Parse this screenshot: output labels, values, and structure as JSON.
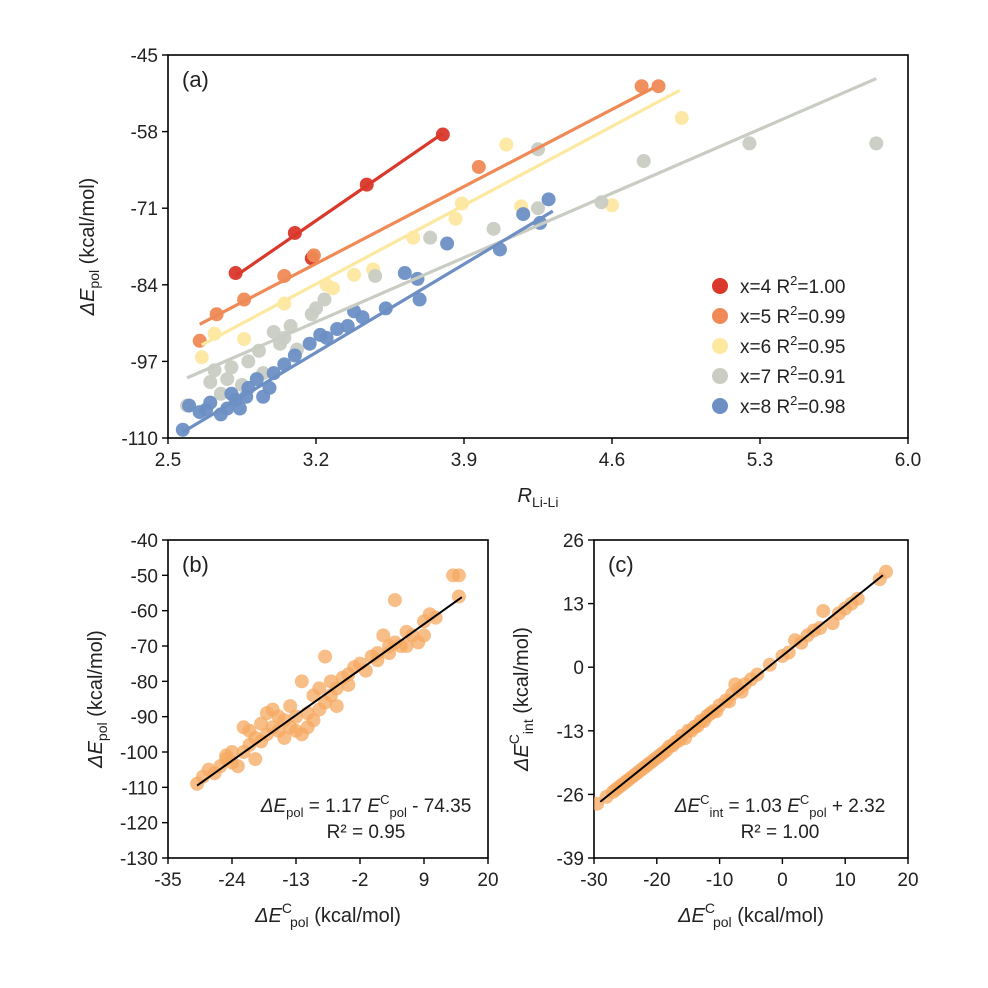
{
  "chart_data": [
    {
      "panel": "(a)",
      "type": "scatter",
      "xlabel": "R",
      "xlabel_sub": "Li-Li",
      "ylabel": "ΔE",
      "ylabel_sub": "pol",
      "ylabel_unit": " (kcal/mol)",
      "xlim": [
        2.5,
        6.0
      ],
      "ylim": [
        -110,
        -45
      ],
      "xticks": [
        2.5,
        3.2,
        3.9,
        4.6,
        5.3,
        6.0
      ],
      "xtick_labels": [
        "2.5",
        "3.2",
        "3.9",
        "4.6",
        "5.3",
        "6.0"
      ],
      "yticks": [
        -110,
        -97,
        -84,
        -71,
        -58,
        -45
      ],
      "ytick_labels": [
        "-110",
        "-97",
        "-84",
        "-71",
        "-58",
        "-45"
      ],
      "legend_position": "bottom-right",
      "series": [
        {
          "name": "x=4 R",
          "r2": "1.00",
          "color": "#d9382a",
          "points": [
            [
              2.82,
              -82.0
            ],
            [
              3.1,
              -75.2
            ],
            [
              3.44,
              -67.0
            ],
            [
              3.8,
              -58.5
            ],
            [
              3.18,
              -79.5
            ]
          ],
          "fit": [
            [
              2.82,
              -82.5
            ],
            [
              3.8,
              -58.3
            ]
          ]
        },
        {
          "name": "x=5 R",
          "r2": "0.99",
          "color": "#ef8a56",
          "points": [
            [
              2.65,
              -93.5
            ],
            [
              2.73,
              -89.0
            ],
            [
              2.86,
              -86.5
            ],
            [
              3.05,
              -82.5
            ],
            [
              3.19,
              -79.0
            ],
            [
              3.97,
              -64.0
            ],
            [
              4.74,
              -50.3
            ],
            [
              4.82,
              -50.3
            ]
          ],
          "fit": [
            [
              2.65,
              -90.7
            ],
            [
              4.8,
              -50.5
            ]
          ]
        },
        {
          "name": "x=6 R",
          "r2": "0.95",
          "color": "#fde8a0",
          "points": [
            [
              2.66,
              -96.3
            ],
            [
              2.72,
              -92.3
            ],
            [
              2.86,
              -93.2
            ],
            [
              3.05,
              -87.2
            ],
            [
              3.25,
              -84.0
            ],
            [
              3.28,
              -84.6
            ],
            [
              3.38,
              -82.3
            ],
            [
              3.47,
              -81.4
            ],
            [
              3.66,
              -76.0
            ],
            [
              3.86,
              -72.8
            ],
            [
              3.89,
              -70.2
            ],
            [
              4.1,
              -60.2
            ],
            [
              4.17,
              -70.7
            ],
            [
              4.6,
              -70.5
            ],
            [
              4.93,
              -55.7
            ]
          ],
          "fit": [
            [
              2.66,
              -94.2
            ],
            [
              4.92,
              -51.0
            ]
          ]
        },
        {
          "name": "x=7 R",
          "r2": "0.91",
          "color": "#c8ccc3",
          "points": [
            [
              2.59,
              -104.5
            ],
            [
              2.7,
              -100.5
            ],
            [
              2.72,
              -98.5
            ],
            [
              2.75,
              -102.5
            ],
            [
              2.8,
              -98.0
            ],
            [
              2.88,
              -97.0
            ],
            [
              2.93,
              -95.2
            ],
            [
              3.0,
              -92.0
            ],
            [
              3.03,
              -94.0
            ],
            [
              3.05,
              -93.0
            ],
            [
              3.08,
              -91.0
            ],
            [
              3.11,
              -95.0
            ],
            [
              3.18,
              -89.0
            ],
            [
              3.2,
              -88.0
            ],
            [
              3.24,
              -86.5
            ],
            [
              3.48,
              -82.5
            ],
            [
              3.74,
              -76.0
            ],
            [
              4.04,
              -74.5
            ],
            [
              4.25,
              -71.0
            ],
            [
              4.25,
              -61.0
            ],
            [
              4.55,
              -70.0
            ],
            [
              4.75,
              -63.0
            ],
            [
              5.25,
              -60.0
            ],
            [
              5.85,
              -60.0
            ],
            [
              2.85,
              -101.0
            ],
            [
              2.95,
              -99.0
            ],
            [
              2.78,
              -100.0
            ]
          ],
          "fit": [
            [
              2.59,
              -99.8
            ],
            [
              5.85,
              -49.0
            ]
          ]
        },
        {
          "name": "x=8 R",
          "r2": "0.98",
          "color": "#6d8fc4",
          "points": [
            [
              2.57,
              -108.6
            ],
            [
              2.6,
              -104.5
            ],
            [
              2.65,
              -105.6
            ],
            [
              2.68,
              -105.2
            ],
            [
              2.7,
              -104.0
            ],
            [
              2.75,
              -106.0
            ],
            [
              2.78,
              -105.0
            ],
            [
              2.8,
              -102.5
            ],
            [
              2.82,
              -103.5
            ],
            [
              2.84,
              -105.0
            ],
            [
              2.87,
              -103.0
            ],
            [
              2.88,
              -101.5
            ],
            [
              2.92,
              -100.0
            ],
            [
              2.95,
              -103.0
            ],
            [
              3.0,
              -99.0
            ],
            [
              3.05,
              -97.5
            ],
            [
              3.1,
              -96.0
            ],
            [
              3.17,
              -94.0
            ],
            [
              3.22,
              -92.5
            ],
            [
              3.25,
              -93.0
            ],
            [
              3.3,
              -91.5
            ],
            [
              3.35,
              -91.0
            ],
            [
              3.38,
              -88.5
            ],
            [
              3.42,
              -89.5
            ],
            [
              3.53,
              -88.0
            ],
            [
              3.62,
              -82.0
            ],
            [
              3.68,
              -83.0
            ],
            [
              3.69,
              -86.5
            ],
            [
              3.82,
              -77.0
            ],
            [
              4.07,
              -78.0
            ],
            [
              4.18,
              -72.0
            ],
            [
              4.26,
              -73.5
            ],
            [
              4.3,
              -69.5
            ],
            [
              2.98,
              -101.5
            ]
          ],
          "fit": [
            [
              2.57,
              -109.0
            ],
            [
              4.32,
              -71.5
            ]
          ]
        }
      ]
    },
    {
      "panel": "(b)",
      "type": "scatter",
      "xlabel": "ΔE",
      "xlabel_sup": "C",
      "xlabel_sub": "pol",
      "xlabel_unit": " (kcal/mol)",
      "ylabel": "ΔE",
      "ylabel_sub": "pol",
      "ylabel_unit": " (kcal/mol)",
      "xlim": [
        -35,
        20
      ],
      "ylim": [
        -130,
        -40
      ],
      "xticks": [
        -35,
        -24,
        -13,
        -2,
        9,
        20
      ],
      "xtick_labels": [
        "-35",
        "-24",
        "-13",
        "-2",
        "9",
        "20"
      ],
      "yticks": [
        -130,
        -120,
        -110,
        -100,
        -90,
        -80,
        -70,
        -60,
        -50,
        -40
      ],
      "ytick_labels": [
        "-130",
        "-120",
        "-110",
        "-100",
        "-90",
        "-80",
        "-70",
        "-60",
        "-50",
        "-40"
      ],
      "color": "#f5a860",
      "equation": "1.17 ΔE",
      "equation_tail": " - 74.35",
      "r2": "R² = 0.95",
      "fit": [
        [
          -30,
          -109.5
        ],
        [
          15.5,
          -56.2
        ]
      ],
      "points": [
        [
          -30,
          -109
        ],
        [
          -29,
          -107
        ],
        [
          -28,
          -105
        ],
        [
          -27,
          -106
        ],
        [
          -26,
          -104
        ],
        [
          -25,
          -102
        ],
        [
          -25,
          -101
        ],
        [
          -24,
          -103
        ],
        [
          -24,
          -100
        ],
        [
          -23,
          -104
        ],
        [
          -22,
          -100
        ],
        [
          -22,
          -93
        ],
        [
          -21,
          -98
        ],
        [
          -21,
          -94
        ],
        [
          -20,
          -102
        ],
        [
          -20,
          -96
        ],
        [
          -19,
          -97
        ],
        [
          -19,
          -92
        ],
        [
          -18,
          -95
        ],
        [
          -18,
          -89
        ],
        [
          -17,
          -88
        ],
        [
          -17,
          -93
        ],
        [
          -16,
          -94
        ],
        [
          -16,
          -90
        ],
        [
          -15,
          -91
        ],
        [
          -15,
          -96
        ],
        [
          -14,
          -93
        ],
        [
          -14,
          -87
        ],
        [
          -13,
          -94
        ],
        [
          -13,
          -90
        ],
        [
          -12,
          -95
        ],
        [
          -12,
          -80
        ],
        [
          -11,
          -89
        ],
        [
          -11,
          -93
        ],
        [
          -10,
          -91
        ],
        [
          -10,
          -84
        ],
        [
          -9,
          -82
        ],
        [
          -9,
          -88
        ],
        [
          -8,
          -86
        ],
        [
          -8,
          -73
        ],
        [
          -7,
          -80
        ],
        [
          -7,
          -84
        ],
        [
          -6,
          -87
        ],
        [
          -6,
          -82
        ],
        [
          -5,
          -79
        ],
        [
          -4,
          -78
        ],
        [
          -4,
          -81
        ],
        [
          -3,
          -76
        ],
        [
          -2,
          -75
        ],
        [
          -1,
          -77
        ],
        [
          0,
          -73
        ],
        [
          1,
          -72
        ],
        [
          1,
          -74
        ],
        [
          2,
          -67
        ],
        [
          3,
          -70
        ],
        [
          3,
          -72
        ],
        [
          4,
          -69
        ],
        [
          4,
          -57
        ],
        [
          5,
          -70
        ],
        [
          6,
          -66
        ],
        [
          6,
          -70
        ],
        [
          7,
          -67
        ],
        [
          8,
          -69
        ],
        [
          9,
          -63
        ],
        [
          9,
          -67
        ],
        [
          10,
          -61
        ],
        [
          11,
          -62
        ],
        [
          14,
          -50
        ],
        [
          15,
          -50
        ],
        [
          15,
          -56
        ]
      ]
    },
    {
      "panel": "(c)",
      "type": "scatter",
      "xlabel": "ΔE",
      "xlabel_sup": "C",
      "xlabel_sub": "pol",
      "xlabel_unit": " (kcal/mol)",
      "ylabel": "ΔE",
      "ylabel_sup": "C",
      "ylabel_sub": "int",
      "ylabel_unit": " (kcal/mol)",
      "xlim": [
        -30,
        20
      ],
      "ylim": [
        -39,
        26
      ],
      "xticks": [
        -30,
        -20,
        -10,
        0,
        10,
        20
      ],
      "xtick_labels": [
        "-30",
        "-20",
        "-10",
        "0",
        "10",
        "20"
      ],
      "yticks": [
        -39,
        -26,
        -13,
        0,
        13,
        26
      ],
      "ytick_labels": [
        "-39",
        "-26",
        "-13",
        "0",
        "13",
        "26"
      ],
      "color": "#f5a860",
      "equation": "1.03 ΔE",
      "equation_tail": "  + 2.32",
      "r2": "R² = 1.00",
      "fit": [
        [
          -29,
          -27.5
        ],
        [
          16,
          18.8
        ]
      ],
      "points": [
        [
          -29.5,
          -27.9
        ],
        [
          -28,
          -26.5
        ],
        [
          -27,
          -25.5
        ],
        [
          -26,
          -24.5
        ],
        [
          -25,
          -23.5
        ],
        [
          -24,
          -22.5
        ],
        [
          -23,
          -21.5
        ],
        [
          -22,
          -20.5
        ],
        [
          -21,
          -19.5
        ],
        [
          -20,
          -18.5
        ],
        [
          -19,
          -17.5
        ],
        [
          -18,
          -16.2
        ],
        [
          -17,
          -15.3
        ],
        [
          -16,
          -14
        ],
        [
          -15,
          -13
        ],
        [
          -14,
          -12.2
        ],
        [
          -13,
          -11
        ],
        [
          -12,
          -10
        ],
        [
          -11,
          -9
        ],
        [
          -10,
          -7.8
        ],
        [
          -9,
          -6.8
        ],
        [
          -8,
          -5.5
        ],
        [
          -7,
          -4.5
        ],
        [
          -6,
          -3.5
        ],
        [
          -5,
          -2.5
        ],
        [
          -4,
          -1.5
        ],
        [
          -2,
          0.5
        ],
        [
          0,
          2.3
        ],
        [
          1,
          3
        ],
        [
          2,
          5.5
        ],
        [
          3,
          5
        ],
        [
          4,
          6.5
        ],
        [
          5,
          7.5
        ],
        [
          6,
          8
        ],
        [
          6.5,
          11.5
        ],
        [
          8,
          9
        ],
        [
          9,
          11
        ],
        [
          10,
          12
        ],
        [
          11,
          13
        ],
        [
          12,
          14
        ],
        [
          15.5,
          18
        ],
        [
          16.5,
          19.5
        ],
        [
          -26.5,
          -25
        ],
        [
          -24.5,
          -23
        ],
        [
          -22.5,
          -21
        ],
        [
          -20.5,
          -19
        ],
        [
          -18.5,
          -17
        ],
        [
          -16.5,
          -15
        ],
        [
          -14.5,
          -13
        ],
        [
          -12.5,
          -11
        ],
        [
          -10.5,
          -9
        ],
        [
          -8.5,
          -7
        ],
        [
          -6.5,
          -5
        ],
        [
          -7.5,
          -3.5
        ],
        [
          -11.5,
          -9.5
        ],
        [
          -13.5,
          -12
        ],
        [
          -15.5,
          -14.5
        ],
        [
          -17.5,
          -16
        ],
        [
          -19.5,
          -18
        ],
        [
          -21.5,
          -20
        ],
        [
          -23.5,
          -22
        ],
        [
          -25.5,
          -24
        ]
      ]
    }
  ]
}
